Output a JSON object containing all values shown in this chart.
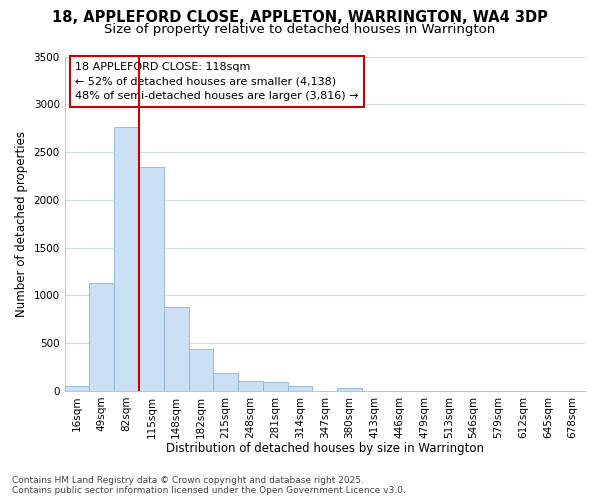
{
  "title_line1": "18, APPLEFORD CLOSE, APPLETON, WARRINGTON, WA4 3DP",
  "title_line2": "Size of property relative to detached houses in Warrington",
  "xlabel": "Distribution of detached houses by size in Warrington",
  "ylabel": "Number of detached properties",
  "bar_color": "#cce0f5",
  "bar_edge_color": "#8ab4d4",
  "categories": [
    "16sqm",
    "49sqm",
    "82sqm",
    "115sqm",
    "148sqm",
    "182sqm",
    "215sqm",
    "248sqm",
    "281sqm",
    "314sqm",
    "347sqm",
    "380sqm",
    "413sqm",
    "446sqm",
    "479sqm",
    "513sqm",
    "546sqm",
    "579sqm",
    "612sqm",
    "645sqm",
    "678sqm"
  ],
  "values": [
    55,
    1130,
    2760,
    2340,
    880,
    440,
    185,
    100,
    90,
    50,
    0,
    30,
    0,
    0,
    0,
    0,
    0,
    0,
    0,
    0,
    0
  ],
  "ylim": [
    0,
    3500
  ],
  "yticks": [
    0,
    500,
    1000,
    1500,
    2000,
    2500,
    3000,
    3500
  ],
  "vline_x_bar_index": 3,
  "vline_color": "#cc0000",
  "annotation_title": "18 APPLEFORD CLOSE: 118sqm",
  "annotation_line1": "← 52% of detached houses are smaller (4,138)",
  "annotation_line2": "48% of semi-detached houses are larger (3,816) →",
  "annotation_box_facecolor": "#ffffff",
  "annotation_border_color": "#cc0000",
  "fig_facecolor": "#ffffff",
  "ax_facecolor": "#ffffff",
  "grid_color": "#d0dce8",
  "footer_line1": "Contains HM Land Registry data © Crown copyright and database right 2025.",
  "footer_line2": "Contains public sector information licensed under the Open Government Licence v3.0.",
  "title_fontsize": 10.5,
  "subtitle_fontsize": 9.5,
  "axis_label_fontsize": 8.5,
  "tick_fontsize": 7.5,
  "annotation_fontsize": 8,
  "footer_fontsize": 6.5
}
